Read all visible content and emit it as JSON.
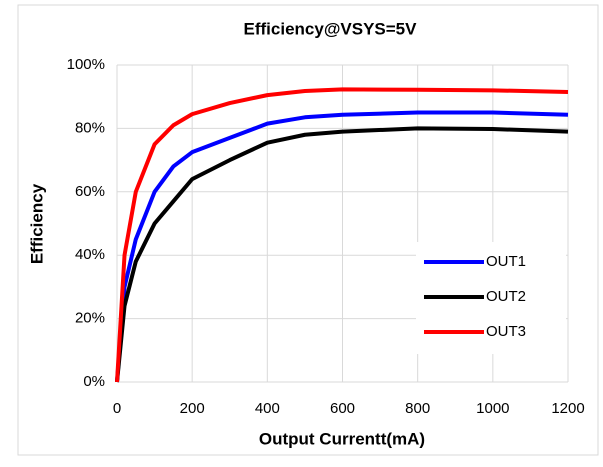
{
  "chart_data": {
    "type": "line",
    "title": "Efficiency@VSYS=5V",
    "x_label": "Output Currentt(mA)",
    "y_label": "Efficiency",
    "x": [
      0,
      20,
      50,
      100,
      150,
      200,
      300,
      400,
      500,
      600,
      800,
      1000,
      1200
    ],
    "series": [
      {
        "name": "OUT1",
        "color": "#0000ff",
        "values": [
          0,
          30,
          45,
          60,
          68,
          72.5,
          77,
          81.5,
          83.5,
          84.3,
          85,
          85,
          84.3
        ]
      },
      {
        "name": "OUT2",
        "color": "#000000",
        "values": [
          0,
          24,
          38,
          50,
          57,
          64,
          70,
          75.5,
          78,
          79,
          80,
          79.8,
          79
        ]
      },
      {
        "name": "OUT3",
        "color": "#ff0000",
        "values": [
          0,
          40,
          60,
          75,
          81,
          84.5,
          88,
          90.5,
          91.8,
          92.3,
          92.2,
          92,
          91.5
        ]
      }
    ],
    "xlim": [
      0,
      1200
    ],
    "xticks": [
      0,
      200,
      400,
      600,
      800,
      1000,
      1200
    ],
    "ylim": [
      0,
      100
    ],
    "yticks": [
      {
        "value": 0,
        "label": "0%"
      },
      {
        "value": 20,
        "label": "20%"
      },
      {
        "value": 40,
        "label": "40%"
      },
      {
        "value": 60,
        "label": "60%"
      },
      {
        "value": 80,
        "label": "80%"
      },
      {
        "value": 100,
        "label": "100%"
      }
    ],
    "grid": true,
    "legend": "lower right"
  }
}
